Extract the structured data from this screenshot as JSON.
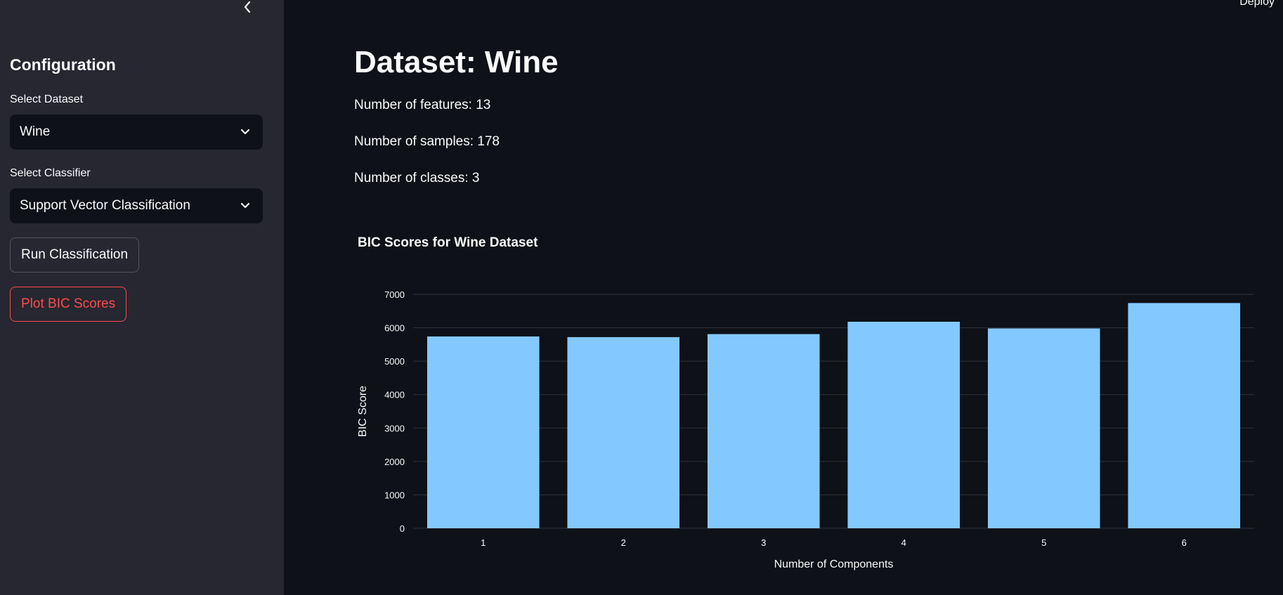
{
  "header": {
    "deploy_label": "Deploy"
  },
  "sidebar": {
    "title": "Configuration",
    "dataset_label": "Select Dataset",
    "dataset_value": "Wine",
    "classifier_label": "Select Classifier",
    "classifier_value": "Support Vector Classification",
    "run_button": "Run Classification",
    "plot_button": "Plot BIC Scores"
  },
  "main": {
    "title": "Dataset: Wine",
    "features": "Number of features: 13",
    "samples": "Number of samples: 178",
    "classes": "Number of classes: 3"
  },
  "colors": {
    "bar": "#83c9ff",
    "accent": "#ff4b4b",
    "background": "#0e1117",
    "sidebar": "#262730"
  },
  "chart_data": {
    "type": "bar",
    "title": "BIC Scores for Wine Dataset",
    "xlabel": "Number of Components",
    "ylabel": "BIC Score",
    "categories": [
      "1",
      "2",
      "3",
      "4",
      "5",
      "6"
    ],
    "values": [
      5740,
      5720,
      5810,
      6180,
      5980,
      6740
    ],
    "ylim": [
      0,
      7000
    ],
    "yticks": [
      0,
      1000,
      2000,
      3000,
      4000,
      5000,
      6000,
      7000
    ],
    "grid": true
  }
}
